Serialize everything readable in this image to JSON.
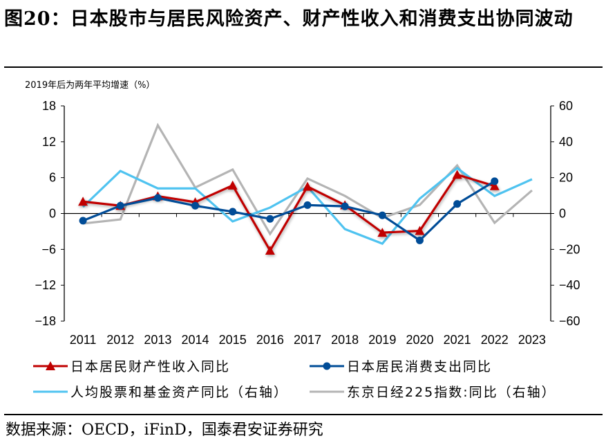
{
  "title": "图20：日本股市与居民风险资产、财产性收入和消费支出协同波动",
  "source": "数据来源：OECD，iFinD，国泰君安证券研究",
  "chart_data": {
    "type": "line",
    "ylabel": "2019年后为两年平均增速（%）",
    "categories": [
      "2011",
      "2012",
      "2013",
      "2014",
      "2015",
      "2016",
      "2017",
      "2018",
      "2019",
      "2020",
      "2021",
      "2022",
      "2023"
    ],
    "ylim_left": [
      -18,
      18
    ],
    "yticks_left": [
      18,
      12,
      6,
      0,
      -6,
      -12,
      -18
    ],
    "ylim_right": [
      -60,
      60
    ],
    "yticks_right": [
      60,
      40,
      20,
      0,
      -20,
      -40,
      -60
    ],
    "grid": false,
    "legend": "bottom",
    "series": [
      {
        "name": "日本居民财产性收入同比",
        "axis": "left",
        "color": "#C00000",
        "marker": "triangle",
        "values": [
          2.0,
          1.3,
          2.9,
          1.9,
          4.7,
          -6.2,
          4.5,
          1.4,
          -3.2,
          -2.9,
          6.5,
          4.6,
          null
        ]
      },
      {
        "name": "日本居民消费支出同比",
        "axis": "left",
        "color": "#004C97",
        "marker": "circle",
        "values": [
          -1.2,
          1.3,
          2.6,
          1.3,
          0.3,
          -0.9,
          1.4,
          1.2,
          -0.3,
          -4.5,
          1.6,
          5.4,
          null
        ]
      },
      {
        "name": "人均股票和基金资产同比（右轴）",
        "axis": "right",
        "color": "#4FC3F0",
        "marker": "none",
        "values": [
          3.7,
          23.7,
          14.0,
          14.0,
          -4.4,
          3.3,
          14.9,
          -8.7,
          -16.8,
          8.3,
          25.3,
          9.8,
          19.1
        ]
      },
      {
        "name": "东京日经225指数:同比（右轴）",
        "axis": "right",
        "color": "#B4B4B4",
        "marker": "none",
        "values": [
          -5.6,
          -3.3,
          49.2,
          14.5,
          24.5,
          -11.4,
          19.5,
          9.8,
          -2.5,
          4.8,
          26.8,
          -5.2,
          12.9
        ]
      }
    ]
  }
}
